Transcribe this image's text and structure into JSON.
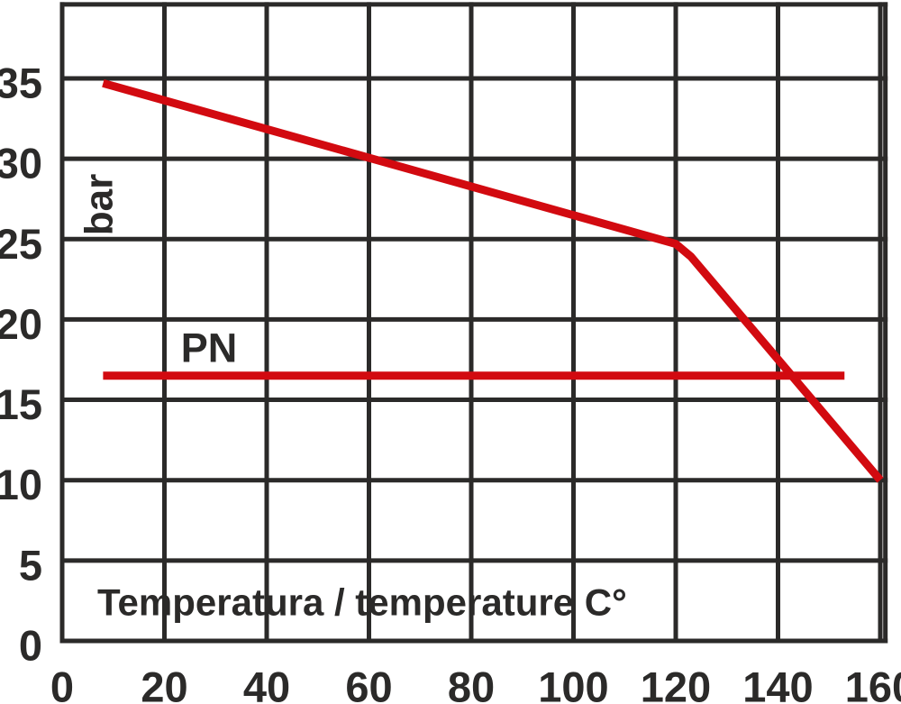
{
  "style": {
    "background": "#ffffff",
    "grid_color": "#2b2a29",
    "text_color": "#2b2a29",
    "accent_red": "#d20a10"
  },
  "chart_data": {
    "type": "line",
    "title": "",
    "xlabel": "Temperatura / temperature C°",
    "ylabel": "bar",
    "x_ticks": [
      0,
      20,
      40,
      60,
      80,
      100,
      120,
      140,
      160
    ],
    "y_ticks": [
      0,
      5,
      10,
      15,
      20,
      25,
      30,
      35
    ],
    "xlim": [
      0,
      161
    ],
    "ylim": [
      0,
      39.6
    ],
    "grid": true,
    "legend": false,
    "series": [
      {
        "name": "max-allowable-pressure-curve",
        "color": "#d20a10",
        "points": [
          [
            8,
            34.7
          ],
          [
            120,
            24.7
          ],
          [
            123,
            23.9
          ],
          [
            160,
            10
          ]
        ]
      },
      {
        "name": "pn-rating-line",
        "color": "#d20a10",
        "points": [
          [
            8,
            16.5
          ],
          [
            153,
            16.5
          ]
        ]
      }
    ],
    "annotations": [
      {
        "text": "PN",
        "x": 29,
        "y": 18.3
      }
    ]
  }
}
